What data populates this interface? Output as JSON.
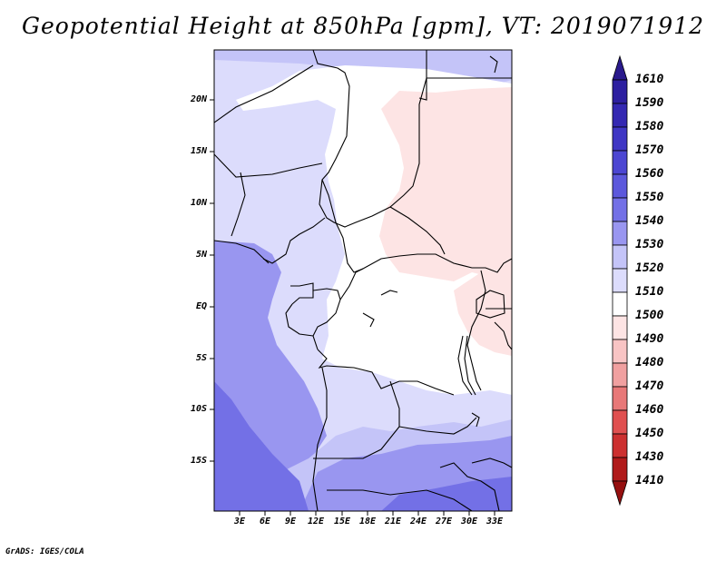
{
  "title": "Geopotential Height at 850hPa [gpm], VT: 2019071912",
  "credit": "GrADS: IGES/COLA",
  "map": {
    "lat_labels": [
      "20N",
      "15N",
      "10N",
      "5N",
      "EQ",
      "5S",
      "10S",
      "15S"
    ],
    "lon_labels": [
      "3E",
      "6E",
      "9E",
      "12E",
      "15E",
      "18E",
      "21E",
      "24E",
      "27E",
      "30E",
      "33E"
    ]
  },
  "colorbar": {
    "labels": [
      "1610",
      "1590",
      "1580",
      "1570",
      "1560",
      "1550",
      "1540",
      "1530",
      "1520",
      "1510",
      "1500",
      "1490",
      "1480",
      "1470",
      "1460",
      "1450",
      "1430",
      "1410"
    ],
    "colors": [
      "#2a1a8c",
      "#2d1fa0",
      "#3428b2",
      "#3f36c4",
      "#4c46d2",
      "#5c58dc",
      "#7370e6",
      "#9996f0",
      "#c4c4f8",
      "#dcdcfc",
      "#ffffff",
      "#fde4e4",
      "#f8c4c4",
      "#f0a0a0",
      "#e87878",
      "#e05050",
      "#cc3030",
      "#b01a1a",
      "#961010"
    ]
  }
}
